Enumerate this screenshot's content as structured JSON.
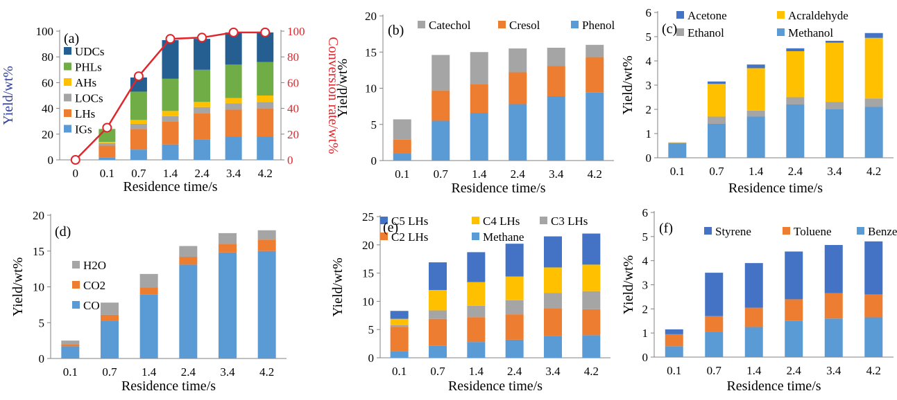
{
  "chart_data": [
    {
      "panel": "(a)",
      "type": "bar",
      "stacked": true,
      "categories": [
        "0",
        "0.1",
        "0.7",
        "1.4",
        "2.4",
        "3.4",
        "4.2"
      ],
      "xlabel": "Residence time/s",
      "ylabel": "Yield/wt%",
      "ylabel_color": "#2e3d9f",
      "ylim": [
        0,
        100
      ],
      "yticks": [
        0,
        20,
        40,
        60,
        80,
        100
      ],
      "y2label": "Conversion rate/wt%",
      "y2label_color": "#e0262b",
      "y2lim": [
        0,
        100
      ],
      "y2ticks": [
        0,
        20,
        40,
        60,
        80,
        100
      ],
      "legend_placement": "top-left",
      "series": [
        {
          "name": "IGs",
          "color": "#5b9bd5",
          "values": [
            0,
            2,
            8,
            12,
            16,
            18,
            18
          ]
        },
        {
          "name": "LHs",
          "color": "#ed7d31",
          "values": [
            0,
            9,
            16,
            18,
            20,
            21,
            22
          ]
        },
        {
          "name": "LOCs",
          "color": "#a5a5a5",
          "values": [
            0,
            2,
            4,
            4,
            5,
            5,
            5
          ]
        },
        {
          "name": "AHs",
          "color": "#ffc000",
          "values": [
            0,
            1,
            3,
            4,
            4,
            4,
            5
          ]
        },
        {
          "name": "PHLs",
          "color": "#70ad47",
          "values": [
            0,
            10,
            22,
            25,
            25,
            26,
            26
          ]
        },
        {
          "name": "UDCs",
          "color": "#255e91",
          "values": [
            0,
            0,
            11,
            30,
            24,
            25,
            23
          ]
        }
      ],
      "line_series": {
        "name": "Conversion rate",
        "color": "#e0262b",
        "axis": "right",
        "values": [
          0,
          25,
          65,
          94,
          95,
          99,
          99
        ]
      }
    },
    {
      "panel": "(b)",
      "type": "bar",
      "stacked": true,
      "categories": [
        "0.1",
        "0.7",
        "1.4",
        "2.4",
        "3.4",
        "4.2"
      ],
      "xlabel": "Residence time/s",
      "ylabel": "Yield/wt%",
      "ylim": [
        0,
        20
      ],
      "yticks": [
        0,
        5,
        10,
        15,
        20
      ],
      "legend_placement": "top",
      "legend_order": [
        "Catechol",
        "Cresol",
        "Phenol"
      ],
      "series": [
        {
          "name": "Phenol",
          "color": "#5b9bd5",
          "values": [
            1.0,
            5.5,
            6.6,
            7.8,
            8.9,
            9.4
          ]
        },
        {
          "name": "Cresol",
          "color": "#ed7d31",
          "values": [
            1.9,
            4.2,
            4.0,
            4.4,
            4.2,
            4.9
          ]
        },
        {
          "name": "Catechol",
          "color": "#a5a5a5",
          "values": [
            2.8,
            4.9,
            4.4,
            3.3,
            2.5,
            1.7
          ]
        }
      ]
    },
    {
      "panel": "(c)",
      "type": "bar",
      "stacked": true,
      "categories": [
        "0.1",
        "0.7",
        "1.4",
        "2.4",
        "3.4",
        "4.2"
      ],
      "xlabel": "Residence time/s",
      "ylabel": "Yield/wt%",
      "ylim": [
        0,
        6
      ],
      "yticks": [
        0,
        1,
        2,
        3,
        4,
        5,
        6
      ],
      "legend_placement": "top",
      "legend_order": [
        "Acetone",
        "Acraldehyde",
        "Ethanol",
        "Methanol"
      ],
      "series": [
        {
          "name": "Methanol",
          "color": "#5b9bd5",
          "values": [
            0.6,
            1.4,
            1.7,
            2.2,
            2.0,
            2.1
          ]
        },
        {
          "name": "Ethanol",
          "color": "#a5a5a5",
          "values": [
            0.02,
            0.3,
            0.25,
            0.3,
            0.3,
            0.35
          ]
        },
        {
          "name": "Acraldehyde",
          "color": "#ffc000",
          "values": [
            0.02,
            1.35,
            1.75,
            1.9,
            2.45,
            2.5
          ]
        },
        {
          "name": "Acetone",
          "color": "#4472c4",
          "values": [
            0.0,
            0.1,
            0.15,
            0.12,
            0.08,
            0.2
          ]
        }
      ]
    },
    {
      "panel": "(d)",
      "type": "bar",
      "stacked": true,
      "categories": [
        "0.1",
        "0.7",
        "1.4",
        "2.4",
        "3.4",
        "4.2"
      ],
      "xlabel": "Residence time/s",
      "ylabel": "Yield/wt%",
      "ylim": [
        0,
        20
      ],
      "yticks": [
        0,
        5,
        10,
        15,
        20
      ],
      "legend_placement": "left",
      "legend_order": [
        "H2O",
        "CO2",
        "CO"
      ],
      "series": [
        {
          "name": "CO",
          "color": "#5b9bd5",
          "values": [
            1.7,
            5.3,
            8.9,
            13.1,
            14.8,
            15.0
          ]
        },
        {
          "name": "CO2",
          "color": "#ed7d31",
          "values": [
            0.3,
            0.8,
            1.0,
            1.1,
            1.2,
            1.6
          ]
        },
        {
          "name": "H2O",
          "color": "#a5a5a5",
          "values": [
            0.5,
            1.7,
            1.9,
            1.5,
            1.5,
            1.3
          ]
        }
      ]
    },
    {
      "panel": "(e)",
      "type": "bar",
      "stacked": true,
      "categories": [
        "0.1",
        "0.7",
        "1.4",
        "2.4",
        "3.4",
        "4.2"
      ],
      "xlabel": "Residence time/s",
      "ylabel": "Yield/wt%",
      "ylim": [
        0,
        25
      ],
      "yticks": [
        0,
        5,
        10,
        15,
        20,
        25
      ],
      "legend_placement": "top",
      "legend_order": [
        "C5 LHs",
        "C4 LHs",
        "C3 LHs",
        "C2 LHs",
        "Methane"
      ],
      "series": [
        {
          "name": "Methane",
          "color": "#5b9bd5",
          "values": [
            1.2,
            2.1,
            2.8,
            3.2,
            3.9,
            4.0
          ]
        },
        {
          "name": "C2 LHs",
          "color": "#ed7d31",
          "values": [
            4.3,
            4.8,
            4.4,
            4.5,
            4.8,
            4.6
          ]
        },
        {
          "name": "C3 LHs",
          "color": "#a5a5a5",
          "values": [
            0.3,
            1.5,
            2.0,
            2.5,
            2.8,
            3.2
          ]
        },
        {
          "name": "C4 LHs",
          "color": "#ffc000",
          "values": [
            1.1,
            3.6,
            4.2,
            4.2,
            4.5,
            4.7
          ]
        },
        {
          "name": "C5 LHs",
          "color": "#4472c4",
          "values": [
            1.4,
            4.9,
            5.3,
            5.8,
            5.5,
            5.5
          ]
        }
      ]
    },
    {
      "panel": "(f)",
      "type": "bar",
      "stacked": true,
      "categories": [
        "0.1",
        "0.7",
        "1.4",
        "2.4",
        "3.4",
        "4.2"
      ],
      "xlabel": "Residence time/s",
      "ylabel": "Yield/wt%",
      "ylim": [
        0,
        6
      ],
      "yticks": [
        0,
        1,
        2,
        3,
        4,
        5,
        6
      ],
      "legend_placement": "top",
      "legend_order": [
        "Styrene",
        "Toluene",
        "Benzene"
      ],
      "series": [
        {
          "name": "Benzene",
          "color": "#5b9bd5",
          "values": [
            0.45,
            1.05,
            1.25,
            1.5,
            1.6,
            1.65
          ]
        },
        {
          "name": "Toluene",
          "color": "#ed7d31",
          "values": [
            0.5,
            0.65,
            0.8,
            0.9,
            1.05,
            0.95
          ]
        },
        {
          "name": "Styrene",
          "color": "#4472c4",
          "values": [
            0.2,
            1.8,
            1.85,
            1.98,
            2.0,
            2.2
          ]
        }
      ]
    }
  ]
}
